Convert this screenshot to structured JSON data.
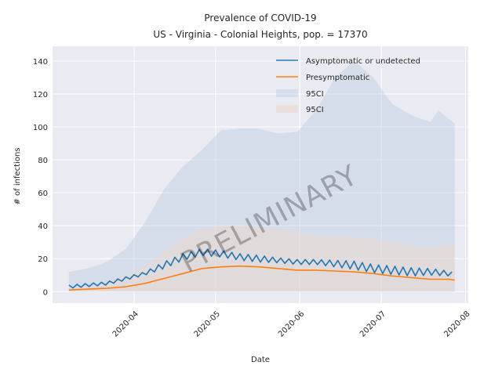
{
  "chart_data": {
    "type": "line",
    "title": "Prevalence of COVID-19",
    "subtitle": "US - Virginia - Colonial Heights, pop. = 17370",
    "xlabel": "Date",
    "ylabel": "# of infections",
    "x_range": [
      "2020-03-02",
      "2020-08-02"
    ],
    "ylim": [
      -7,
      149
    ],
    "y_ticks": [
      0,
      20,
      40,
      60,
      80,
      100,
      120,
      140
    ],
    "x_ticks": [
      "2020-04",
      "2020-05",
      "2020-06",
      "2020-07",
      "2020-08"
    ],
    "grid": true,
    "legend_position": "top-right",
    "watermark": "PRELIMINARY",
    "series": [
      {
        "name": "Asymptomatic or undetected",
        "color": "#1f77b4",
        "x": [
          "2020-03-08",
          "2020-03-15",
          "2020-03-22",
          "2020-03-29",
          "2020-04-05",
          "2020-04-12",
          "2020-04-19",
          "2020-04-26",
          "2020-05-03",
          "2020-05-10",
          "2020-05-17",
          "2020-05-24",
          "2020-05-31",
          "2020-06-07",
          "2020-06-14",
          "2020-06-21",
          "2020-06-28",
          "2020-07-05",
          "2020-07-12",
          "2020-07-19",
          "2020-07-26",
          "2020-07-28"
        ],
        "values": [
          3,
          4,
          5,
          8,
          11,
          16,
          21,
          24,
          23,
          21,
          20,
          19,
          18,
          18,
          17,
          16,
          14,
          13,
          12,
          12,
          11,
          10
        ],
        "amplitude": [
          1,
          1,
          1,
          1,
          1,
          2,
          2,
          2,
          2,
          2,
          2,
          1.5,
          1.5,
          1.5,
          2,
          2.5,
          2.5,
          2.5,
          2.5,
          2,
          1.5,
          1.5
        ]
      },
      {
        "name": "Presymptomatic",
        "color": "#ff7f0e",
        "x": [
          "2020-03-08",
          "2020-03-15",
          "2020-03-22",
          "2020-03-29",
          "2020-04-05",
          "2020-04-12",
          "2020-04-19",
          "2020-04-26",
          "2020-05-03",
          "2020-05-10",
          "2020-05-17",
          "2020-05-24",
          "2020-05-31",
          "2020-06-07",
          "2020-06-14",
          "2020-06-21",
          "2020-06-28",
          "2020-07-05",
          "2020-07-12",
          "2020-07-19",
          "2020-07-26",
          "2020-07-28"
        ],
        "values": [
          1,
          1.5,
          2,
          3,
          5,
          8,
          11,
          14,
          15,
          15.5,
          15,
          14,
          13,
          13,
          12.5,
          12,
          11,
          9.5,
          8.5,
          7.5,
          7.5,
          7
        ]
      }
    ],
    "bands": [
      {
        "name": "95CI",
        "color": "#b0c4de",
        "x": [
          "2020-03-08",
          "2020-03-15",
          "2020-03-22",
          "2020-03-29",
          "2020-04-05",
          "2020-04-12",
          "2020-04-19",
          "2020-04-26",
          "2020-05-03",
          "2020-05-10",
          "2020-05-17",
          "2020-05-24",
          "2020-05-31",
          "2020-06-07",
          "2020-06-14",
          "2020-06-21",
          "2020-06-28",
          "2020-07-05",
          "2020-07-12",
          "2020-07-19",
          "2020-07-22",
          "2020-07-28"
        ],
        "upper": [
          12,
          14,
          18,
          26,
          42,
          62,
          76,
          86,
          98,
          99,
          99,
          96,
          97,
          110,
          130,
          140,
          130,
          114,
          107,
          103,
          110,
          102
        ],
        "lower": [
          0,
          0,
          0,
          0,
          0,
          0,
          0,
          0,
          0,
          0,
          0,
          0,
          0,
          0,
          0,
          0,
          0,
          0,
          0,
          0,
          0,
          0
        ]
      },
      {
        "name": "95CI",
        "color": "#e8d8d0",
        "x": [
          "2020-03-08",
          "2020-03-15",
          "2020-03-22",
          "2020-03-29",
          "2020-04-05",
          "2020-04-12",
          "2020-04-19",
          "2020-04-26",
          "2020-05-03",
          "2020-05-10",
          "2020-05-17",
          "2020-05-24",
          "2020-05-31",
          "2020-06-07",
          "2020-06-14",
          "2020-06-21",
          "2020-06-28",
          "2020-07-05",
          "2020-07-12",
          "2020-07-19",
          "2020-07-22",
          "2020-07-28"
        ],
        "upper": [
          1,
          3,
          6,
          10,
          16,
          24,
          33,
          38,
          40,
          40,
          39,
          38,
          36,
          33,
          34,
          33,
          32,
          30,
          28,
          27,
          28,
          29
        ],
        "lower": [
          0,
          0,
          0,
          0,
          0,
          0,
          0,
          0,
          0,
          0,
          0,
          0,
          0,
          0,
          0,
          0,
          0,
          0,
          0,
          0,
          0,
          0
        ]
      }
    ]
  }
}
